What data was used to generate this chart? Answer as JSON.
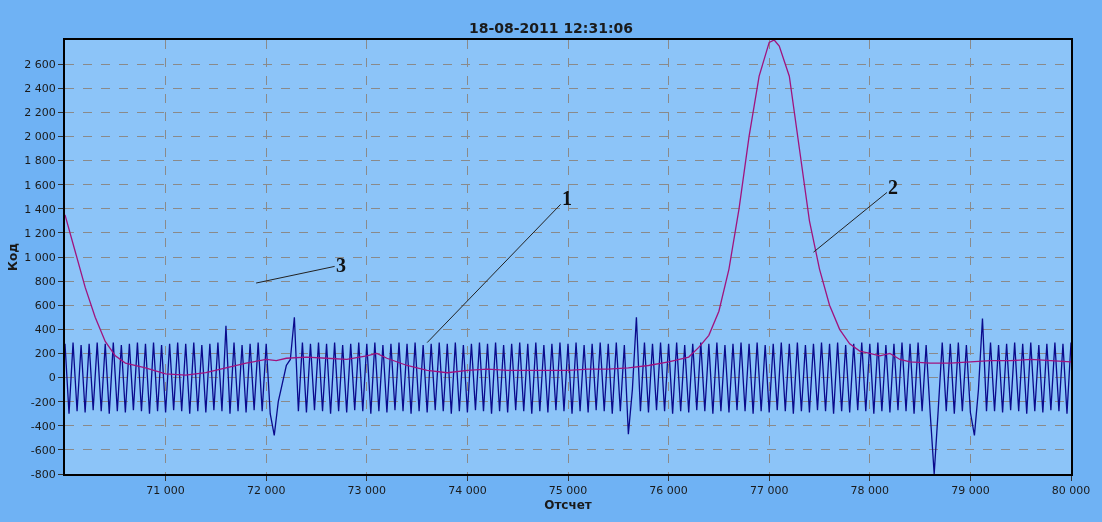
{
  "chart_data": {
    "type": "line",
    "title": "18-08-2011 12:31:06",
    "xlabel": "Отсчет",
    "ylabel": "Код",
    "xlim": [
      70000,
      80000
    ],
    "xticks": [
      {
        "value": 71000,
        "label": "71 000"
      },
      {
        "value": 72000,
        "label": "72 000"
      },
      {
        "value": 73000,
        "label": "73 000"
      },
      {
        "value": 74000,
        "label": "74 000"
      },
      {
        "value": 75000,
        "label": "75 000"
      },
      {
        "value": 76000,
        "label": "76 000"
      },
      {
        "value": 77000,
        "label": "77 000"
      },
      {
        "value": 78000,
        "label": "78 000"
      },
      {
        "value": 79000,
        "label": "79 000"
      },
      {
        "value": 80000,
        "label": "80 000"
      }
    ],
    "ylim": [
      -800,
      2800
    ],
    "yticks": [
      -800,
      -600,
      -400,
      -200,
      0,
      200,
      400,
      600,
      800,
      {
        "value": 1000,
        "label": "1 000"
      },
      {
        "value": 1200,
        "label": "1 200"
      },
      {
        "value": 1400,
        "label": "1 400"
      },
      {
        "value": 1600,
        "label": "1 600"
      },
      {
        "value": 1800,
        "label": "1 800"
      },
      {
        "value": 2000,
        "label": "2 000"
      },
      {
        "value": 2200,
        "label": "2 200"
      },
      {
        "value": 2400,
        "label": "2 400"
      },
      {
        "value": 2600,
        "label": "2 600"
      }
    ],
    "grid": true,
    "marker": "none",
    "line_style": "solid",
    "annotations": [
      {
        "text": "1",
        "x": 73600,
        "y": 290
      },
      {
        "text": "2",
        "x": 77440,
        "y": 1040
      },
      "3"
    ],
    "series": [
      {
        "color": "#0a0a8c",
        "x": [
          70000,
          70040,
          70080,
          70120,
          70160,
          70200,
          70240,
          70280,
          70320,
          70360,
          70400,
          70440,
          70480,
          70520,
          70560,
          70600,
          70640,
          70680,
          70720,
          70760,
          70800,
          70840,
          70880,
          70920,
          70960,
          71000,
          71040,
          71080,
          71120,
          71160,
          71200,
          71240,
          71280,
          71320,
          71360,
          71400,
          71440,
          71480,
          71520,
          71560,
          71600,
          71640,
          71680,
          71720,
          71760,
          71800,
          71840,
          71880,
          71920,
          71960,
          72000,
          72040,
          72080,
          72120,
          72160,
          72200,
          72240,
          72280,
          72320,
          72360,
          72400,
          72440,
          72480,
          72520,
          72560,
          72600,
          72640,
          72680,
          72720,
          72760,
          72800,
          72840,
          72880,
          72920,
          72960,
          73000,
          73040,
          73080,
          73120,
          73160,
          73200,
          73240,
          73280,
          73320,
          73360,
          73400,
          73440,
          73480,
          73520,
          73560,
          73600,
          73640,
          73680,
          73720,
          73760,
          73800,
          73840,
          73880,
          73920,
          73960,
          74000,
          74040,
          74080,
          74120,
          74160,
          74200,
          74240,
          74280,
          74320,
          74360,
          74400,
          74440,
          74480,
          74520,
          74560,
          74600,
          74640,
          74680,
          74720,
          74760,
          74800,
          74840,
          74880,
          74920,
          74960,
          75000,
          75040,
          75080,
          75120,
          75160,
          75200,
          75240,
          75280,
          75320,
          75360,
          75400,
          75440,
          75480,
          75520,
          75560,
          75600,
          75640,
          75680,
          75720,
          75760,
          75800,
          75840,
          75880,
          75920,
          75960,
          76000,
          76040,
          76080,
          76120,
          76160,
          76200,
          76240,
          76280,
          76320,
          76360,
          76400,
          76440,
          76480,
          76520,
          76560,
          76600,
          76640,
          76680,
          76720,
          76760,
          76800,
          76840,
          76880,
          76920,
          76960,
          77000,
          77040,
          77080,
          77120,
          77160,
          77200,
          77240,
          77280,
          77320,
          77360,
          77400,
          77440,
          77480,
          77520,
          77560,
          77600,
          77640,
          77680,
          77720,
          77760,
          77800,
          77840,
          77880,
          77920,
          77960,
          78000,
          78040,
          78080,
          78120,
          78160,
          78200,
          78240,
          78280,
          78320,
          78360,
          78400,
          78440,
          78480,
          78520,
          78560,
          78600,
          78640,
          78680,
          78720,
          78760,
          78800,
          78840,
          78880,
          78920,
          78960,
          79000,
          79040,
          79080,
          79120,
          79160,
          79200,
          79240,
          79280,
          79320,
          79360,
          79400,
          79440,
          79480,
          79520,
          79560,
          79600,
          79640,
          79680,
          79720,
          79760,
          79800,
          79840,
          79880,
          79920,
          79960,
          80000
        ],
        "values": [
          280,
          -300,
          290,
          -280,
          270,
          -290,
          280,
          -270,
          290,
          -280,
          280,
          -300,
          290,
          -280,
          270,
          -290,
          280,
          -270,
          290,
          -280,
          280,
          -300,
          290,
          -280,
          270,
          -290,
          280,
          -270,
          290,
          -280,
          280,
          -300,
          290,
          -280,
          270,
          -290,
          280,
          -270,
          290,
          -280,
          430,
          -300,
          290,
          -280,
          270,
          -290,
          280,
          -270,
          290,
          -280,
          280,
          -300,
          -480,
          -200,
          -50,
          100,
          150,
          500,
          -280,
          290,
          -290,
          280,
          -270,
          290,
          -280,
          280,
          -300,
          290,
          -280,
          270,
          -290,
          280,
          -270,
          290,
          -280,
          280,
          -300,
          290,
          -280,
          270,
          -290,
          280,
          -270,
          290,
          -280,
          280,
          -300,
          290,
          -280,
          270,
          -290,
          280,
          -270,
          290,
          -280,
          280,
          -300,
          290,
          -280,
          270,
          -290,
          280,
          -270,
          290,
          -280,
          280,
          -300,
          290,
          -280,
          270,
          -290,
          280,
          -270,
          290,
          -280,
          280,
          -300,
          290,
          -280,
          270,
          -290,
          280,
          -270,
          290,
          -280,
          280,
          -300,
          290,
          -280,
          270,
          -290,
          280,
          -270,
          290,
          -280,
          280,
          -300,
          290,
          -280,
          270,
          -470,
          -100,
          500,
          -280,
          290,
          -290,
          280,
          -270,
          290,
          -280,
          280,
          -300,
          290,
          -280,
          270,
          -290,
          280,
          -270,
          290,
          -280,
          280,
          -300,
          290,
          -280,
          270,
          -290,
          280,
          -270,
          290,
          -280,
          280,
          -300,
          290,
          -280,
          270,
          -290,
          280,
          -270,
          290,
          -280,
          280,
          -300,
          290,
          -280,
          270,
          -290,
          280,
          -270,
          290,
          -280,
          280,
          -300,
          290,
          -280,
          270,
          -290,
          280,
          -270,
          290,
          -280,
          280,
          -300,
          290,
          -280,
          270,
          -290,
          280,
          -270,
          290,
          -280,
          280,
          -300,
          290,
          -280,
          270,
          -290,
          -800,
          -270,
          290,
          -280,
          280,
          -300,
          290,
          -280,
          270,
          -290,
          -480,
          -100,
          490,
          -280,
          290,
          -280,
          270,
          -290,
          280,
          -270,
          290,
          -280,
          280,
          -300,
          290,
          -280,
          270,
          -290,
          280,
          -270,
          290,
          -280,
          280,
          -300,
          290
        ]
      },
      {
        "color": "#a0137e",
        "x": [
          70000,
          70100,
          70200,
          70300,
          70400,
          70500,
          70600,
          70800,
          71000,
          71200,
          71400,
          71600,
          71800,
          72000,
          72100,
          72200,
          72400,
          72600,
          72800,
          73000,
          73100,
          73200,
          73400,
          73600,
          73800,
          74000,
          74200,
          74400,
          74600,
          74800,
          75000,
          75200,
          75400,
          75600,
          75800,
          76000,
          76200,
          76300,
          76400,
          76500,
          76600,
          76700,
          76800,
          76900,
          77000,
          77050,
          77100,
          77200,
          77300,
          77400,
          77500,
          77600,
          77700,
          77800,
          77900,
          78000,
          78100,
          78200,
          78300,
          78400,
          78600,
          78800,
          79000,
          79200,
          79400,
          79600,
          79800,
          80000
        ],
        "values": [
          1350,
          1050,
          750,
          500,
          300,
          180,
          120,
          80,
          30,
          20,
          40,
          80,
          120,
          150,
          140,
          160,
          170,
          160,
          150,
          180,
          200,
          160,
          100,
          60,
          40,
          60,
          70,
          60,
          60,
          60,
          60,
          70,
          70,
          80,
          100,
          130,
          170,
          250,
          350,
          550,
          900,
          1400,
          2000,
          2500,
          2780,
          2800,
          2750,
          2500,
          1900,
          1300,
          900,
          600,
          400,
          280,
          220,
          200,
          180,
          200,
          150,
          130,
          120,
          120,
          130,
          140,
          140,
          150,
          140,
          130
        ]
      }
    ]
  }
}
